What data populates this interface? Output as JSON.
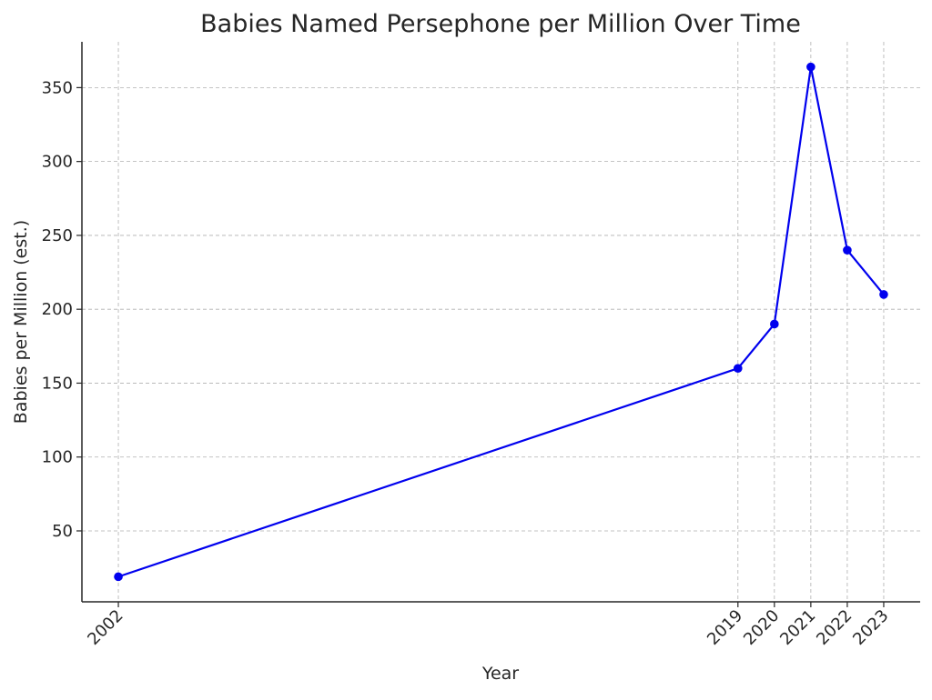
{
  "chart_data": {
    "type": "line",
    "title": "Babies Named Persephone per Million Over Time",
    "xlabel": "Year",
    "ylabel": "Babies per Million (est.)",
    "x": [
      2002,
      2019,
      2020,
      2021,
      2022,
      2023
    ],
    "x_tick_labels": [
      "2002",
      "2019",
      "2020",
      "2021",
      "2022",
      "2023"
    ],
    "y_ticks": [
      50,
      100,
      150,
      200,
      250,
      300,
      350
    ],
    "xlim": [
      2001,
      2024
    ],
    "ylim": [
      2,
      381
    ],
    "series": [
      {
        "values": [
          19,
          160,
          190,
          364,
          240,
          210
        ],
        "color": "#0000ee"
      }
    ],
    "grid": true,
    "markers": true
  }
}
